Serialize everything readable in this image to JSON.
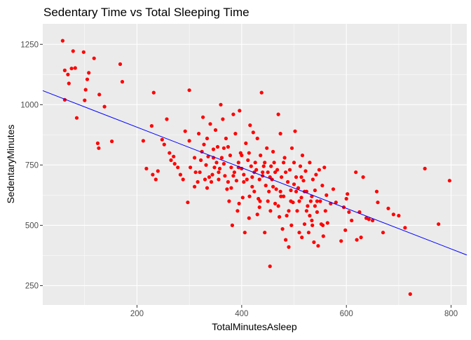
{
  "chart_data": {
    "type": "scatter",
    "title": "Sedentary Time vs Total Sleeping Time",
    "xlabel": "TotalMinutesAsleep",
    "ylabel": "SedentaryMinutes",
    "xlim": [
      20,
      830
    ],
    "ylim": [
      170,
      1335
    ],
    "xticks": [
      200,
      400,
      600,
      800
    ],
    "yticks": [
      250,
      500,
      750,
      1000,
      1250
    ],
    "grid": true,
    "legend": "none",
    "colors": {
      "panel_bg": "#EBEBEB",
      "grid_major": "#FFFFFF",
      "point": "#FF0000",
      "trend_line": "#0000FF",
      "tick_text": "#4D4D4D",
      "text": "#000000"
    },
    "trend_line": {
      "x": [
        20,
        830
      ],
      "y": [
        1058,
        377
      ]
    },
    "points": [
      [
        58,
        1265
      ],
      [
        62,
        1142
      ],
      [
        68,
        1125
      ],
      [
        75,
        1150
      ],
      [
        78,
        1222
      ],
      [
        98,
        1218
      ],
      [
        82,
        1152
      ],
      [
        70,
        1088
      ],
      [
        62,
        1020
      ],
      [
        105,
        1105
      ],
      [
        102,
        1062
      ],
      [
        118,
        1192
      ],
      [
        108,
        1132
      ],
      [
        128,
        1042
      ],
      [
        100,
        1018
      ],
      [
        168,
        1168
      ],
      [
        172,
        1095
      ],
      [
        85,
        945
      ],
      [
        125,
        840
      ],
      [
        127,
        820
      ],
      [
        152,
        848
      ],
      [
        138,
        992
      ],
      [
        212,
        850
      ],
      [
        218,
        735
      ],
      [
        228,
        912
      ],
      [
        232,
        1050
      ],
      [
        230,
        710
      ],
      [
        236,
        690
      ],
      [
        240,
        725
      ],
      [
        252,
        835
      ],
      [
        248,
        855
      ],
      [
        257,
        940
      ],
      [
        262,
        800
      ],
      [
        265,
        770
      ],
      [
        270,
        785
      ],
      [
        272,
        755
      ],
      [
        278,
        740
      ],
      [
        283,
        710
      ],
      [
        288,
        690
      ],
      [
        292,
        890
      ],
      [
        297,
        595
      ],
      [
        300,
        1060
      ],
      [
        302,
        740
      ],
      [
        310,
        660
      ],
      [
        312,
        720
      ],
      [
        316,
        680
      ],
      [
        320,
        720
      ],
      [
        322,
        770
      ],
      [
        324,
        805
      ],
      [
        326,
        948
      ],
      [
        328,
        835
      ],
      [
        330,
        690
      ],
      [
        332,
        750
      ],
      [
        334,
        860
      ],
      [
        336,
        785
      ],
      [
        338,
        700
      ],
      [
        340,
        920
      ],
      [
        342,
        680
      ],
      [
        344,
        710
      ],
      [
        346,
        815
      ],
      [
        348,
        740
      ],
      [
        350,
        895
      ],
      [
        352,
        760
      ],
      [
        354,
        825
      ],
      [
        356,
        690
      ],
      [
        358,
        735
      ],
      [
        360,
        1000
      ],
      [
        362,
        780
      ],
      [
        364,
        940
      ],
      [
        366,
        755
      ],
      [
        368,
        705
      ],
      [
        370,
        860
      ],
      [
        372,
        650
      ],
      [
        374,
        825
      ],
      [
        376,
        600
      ],
      [
        378,
        790
      ],
      [
        380,
        740
      ],
      [
        382,
        500
      ],
      [
        384,
        960
      ],
      [
        386,
        720
      ],
      [
        388,
        880
      ],
      [
        390,
        685
      ],
      [
        392,
        560
      ],
      [
        394,
        760
      ],
      [
        396,
        975
      ],
      [
        398,
        800
      ],
      [
        400,
        735
      ],
      [
        402,
        615
      ],
      [
        404,
        710
      ],
      [
        406,
        470
      ],
      [
        408,
        840
      ],
      [
        410,
        690
      ],
      [
        412,
        770
      ],
      [
        414,
        530
      ],
      [
        416,
        915
      ],
      [
        418,
        745
      ],
      [
        420,
        700
      ],
      [
        422,
        885
      ],
      [
        424,
        640
      ],
      [
        426,
        760
      ],
      [
        428,
        730
      ],
      [
        430,
        860
      ],
      [
        432,
        610
      ],
      [
        434,
        575
      ],
      [
        436,
        790
      ],
      [
        438,
        1050
      ],
      [
        440,
        705
      ],
      [
        442,
        745
      ],
      [
        444,
        470
      ],
      [
        446,
        665
      ],
      [
        448,
        820
      ],
      [
        450,
        720
      ],
      [
        452,
        640
      ],
      [
        454,
        330
      ],
      [
        456,
        745
      ],
      [
        458,
        690
      ],
      [
        460,
        805
      ],
      [
        462,
        760
      ],
      [
        464,
        590
      ],
      [
        466,
        650
      ],
      [
        468,
        730
      ],
      [
        470,
        960
      ],
      [
        472,
        535
      ],
      [
        474,
        880
      ],
      [
        476,
        700
      ],
      [
        478,
        485
      ],
      [
        480,
        620
      ],
      [
        482,
        780
      ],
      [
        484,
        440
      ],
      [
        486,
        540
      ],
      [
        488,
        680
      ],
      [
        490,
        410
      ],
      [
        492,
        730
      ],
      [
        494,
        645
      ],
      [
        496,
        820
      ],
      [
        498,
        595
      ],
      [
        500,
        760
      ],
      [
        502,
        890
      ],
      [
        504,
        700
      ],
      [
        506,
        560
      ],
      [
        508,
        655
      ],
      [
        510,
        470
      ],
      [
        512,
        745
      ],
      [
        514,
        615
      ],
      [
        516,
        790
      ],
      [
        518,
        685
      ],
      [
        520,
        505
      ],
      [
        522,
        725
      ],
      [
        524,
        640
      ],
      [
        526,
        580
      ],
      [
        528,
        470
      ],
      [
        530,
        760
      ],
      [
        532,
        600
      ],
      [
        534,
        520
      ],
      [
        536,
        690
      ],
      [
        538,
        430
      ],
      [
        540,
        645
      ],
      [
        542,
        710
      ],
      [
        544,
        555
      ],
      [
        546,
        415
      ],
      [
        548,
        730
      ],
      [
        550,
        600
      ],
      [
        552,
        505
      ],
      [
        554,
        665
      ],
      [
        556,
        455
      ],
      [
        558,
        740
      ],
      [
        560,
        560
      ],
      [
        562,
        625
      ],
      [
        564,
        510
      ],
      [
        570,
        590
      ],
      [
        575,
        650
      ],
      [
        580,
        595
      ],
      [
        590,
        435
      ],
      [
        595,
        575
      ],
      [
        598,
        480
      ],
      [
        600,
        610
      ],
      [
        602,
        630
      ],
      [
        605,
        555
      ],
      [
        610,
        520
      ],
      [
        618,
        720
      ],
      [
        620,
        440
      ],
      [
        625,
        555
      ],
      [
        628,
        450
      ],
      [
        632,
        700
      ],
      [
        638,
        530
      ],
      [
        643,
        525
      ],
      [
        650,
        520
      ],
      [
        658,
        640
      ],
      [
        660,
        595
      ],
      [
        670,
        470
      ],
      [
        680,
        570
      ],
      [
        690,
        545
      ],
      [
        700,
        540
      ],
      [
        712,
        490
      ],
      [
        722,
        215
      ],
      [
        750,
        735
      ],
      [
        776,
        505
      ],
      [
        797,
        685
      ],
      [
        300,
        850
      ],
      [
        310,
        780
      ],
      [
        318,
        880
      ],
      [
        334,
        655
      ],
      [
        346,
        780
      ],
      [
        356,
        720
      ],
      [
        366,
        820
      ],
      [
        374,
        680
      ],
      [
        384,
        705
      ],
      [
        394,
        740
      ],
      [
        404,
        680
      ],
      [
        414,
        800
      ],
      [
        424,
        720
      ],
      [
        434,
        690
      ],
      [
        444,
        760
      ],
      [
        454,
        700
      ],
      [
        464,
        720
      ],
      [
        474,
        640
      ],
      [
        484,
        720
      ],
      [
        494,
        600
      ],
      [
        504,
        640
      ],
      [
        514,
        700
      ],
      [
        524,
        560
      ],
      [
        534,
        620
      ],
      [
        544,
        600
      ],
      [
        380,
        655
      ],
      [
        400,
        790
      ],
      [
        420,
        660
      ],
      [
        440,
        720
      ],
      [
        460,
        660
      ],
      [
        480,
        760
      ],
      [
        500,
        670
      ],
      [
        520,
        640
      ],
      [
        540,
        580
      ],
      [
        430,
        545
      ],
      [
        450,
        600
      ],
      [
        470,
        580
      ],
      [
        490,
        560
      ],
      [
        510,
        600
      ],
      [
        530,
        540
      ],
      [
        395,
        590
      ],
      [
        415,
        620
      ],
      [
        435,
        600
      ],
      [
        455,
        560
      ],
      [
        475,
        620
      ],
      [
        495,
        500
      ],
      [
        515,
        450
      ],
      [
        535,
        500
      ],
      [
        555,
        500
      ]
    ]
  }
}
